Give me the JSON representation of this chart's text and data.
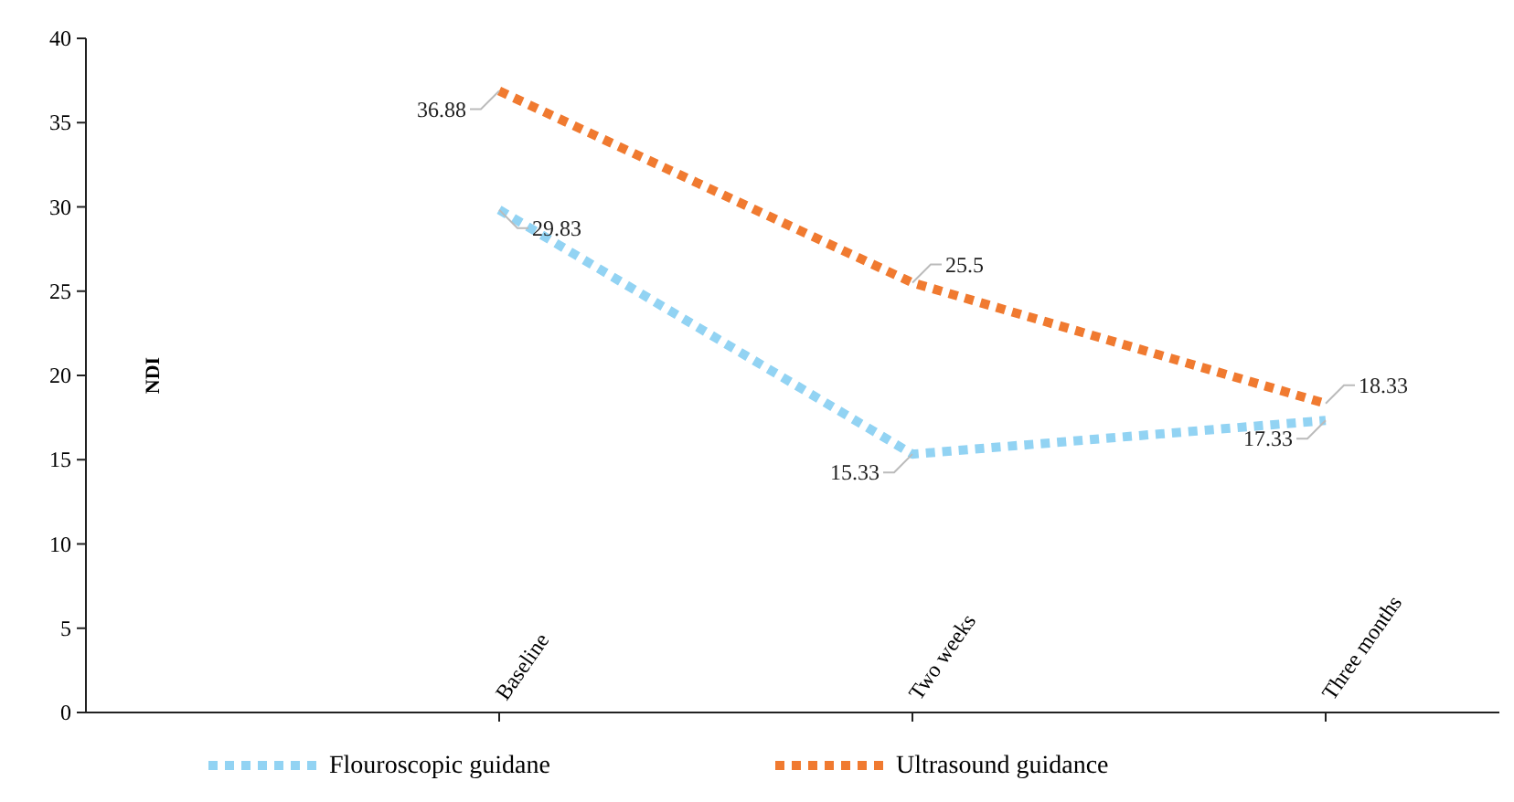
{
  "chart_data": {
    "type": "line",
    "ylabel": "NDI",
    "categories": [
      "Baseline",
      "Two weeks",
      "Three months"
    ],
    "series": [
      {
        "name": "Flouroscopic guidane",
        "color": "#92d3f3",
        "values": [
          29.83,
          15.33,
          17.33
        ]
      },
      {
        "name": "Ultrasound guidance",
        "color": "#f07a30",
        "values": [
          36.88,
          25.5,
          18.33
        ]
      }
    ],
    "ylim": [
      0,
      40
    ],
    "yticks": [
      0,
      5,
      10,
      15,
      20,
      25,
      30,
      35,
      40
    ],
    "data_labels": true,
    "legend": "bottom",
    "line_style": "dotted",
    "marker": "none",
    "grid": false
  }
}
